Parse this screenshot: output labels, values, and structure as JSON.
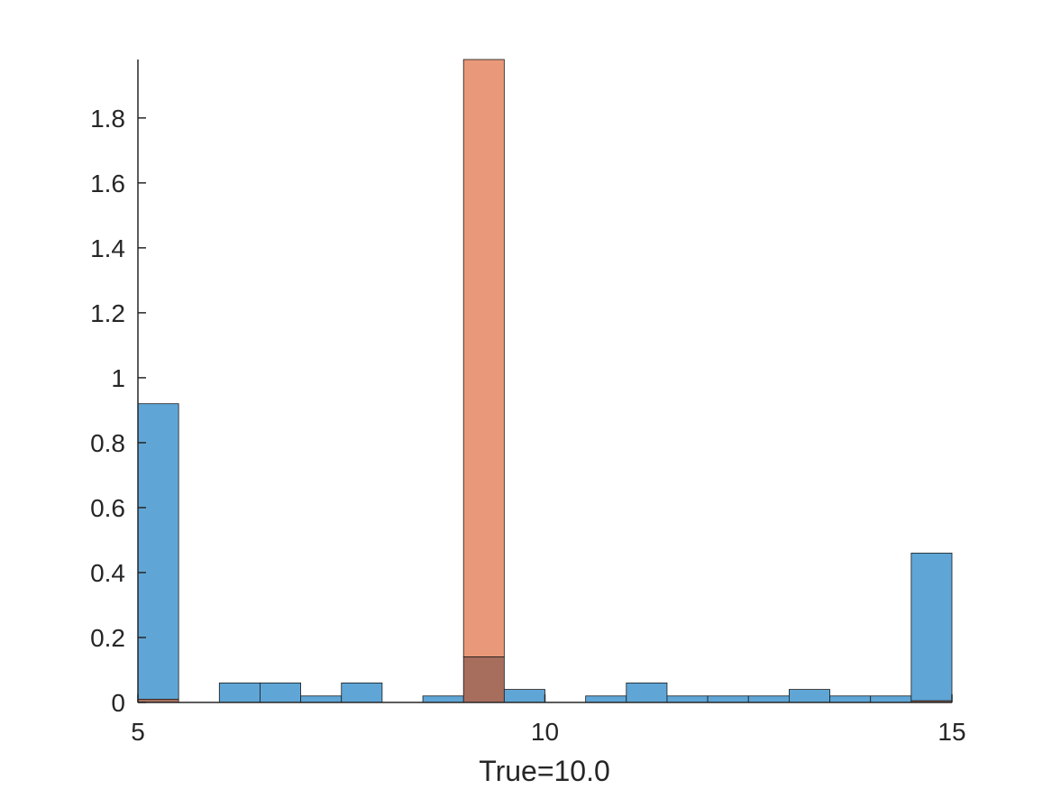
{
  "chart_data": {
    "type": "bar",
    "title": "",
    "xlabel": "True=10.0",
    "ylabel": "",
    "xlim": [
      5,
      15
    ],
    "ylim": [
      0,
      1.98
    ],
    "x_ticks": [
      "5",
      "10",
      "15"
    ],
    "x_tick_values": [
      5,
      10,
      15
    ],
    "y_ticks": [
      "0",
      "0.2",
      "0.4",
      "0.6",
      "0.8",
      "1",
      "1.2",
      "1.4",
      "1.6",
      "1.8"
    ],
    "y_tick_values": [
      0,
      0.2,
      0.4,
      0.6,
      0.8,
      1,
      1.2,
      1.4,
      1.6,
      1.8
    ],
    "grid": false,
    "legend": "none",
    "bin_edges": [
      5,
      5.5,
      6,
      6.5,
      7,
      7.5,
      8,
      8.5,
      9,
      9.5,
      10,
      10.5,
      11,
      11.5,
      12,
      12.5,
      13,
      13.5,
      14,
      14.5,
      15
    ],
    "series": [
      {
        "color": "#5fa6d7",
        "values": [
          0.92,
          0,
          0.06,
          0.06,
          0.02,
          0.06,
          0,
          0.02,
          0.14,
          0.04,
          0,
          0.02,
          0.06,
          0.02,
          0.02,
          0.02,
          0.04,
          0.02,
          0.02,
          0.46
        ]
      },
      {
        "color": "#e9997a",
        "values": [
          0.01,
          0,
          0,
          0,
          0,
          0,
          0,
          0,
          1.98,
          0,
          0,
          0,
          0,
          0,
          0,
          0,
          0,
          0,
          0,
          0.005
        ]
      }
    ],
    "overlap_color": "#a86e5d"
  }
}
